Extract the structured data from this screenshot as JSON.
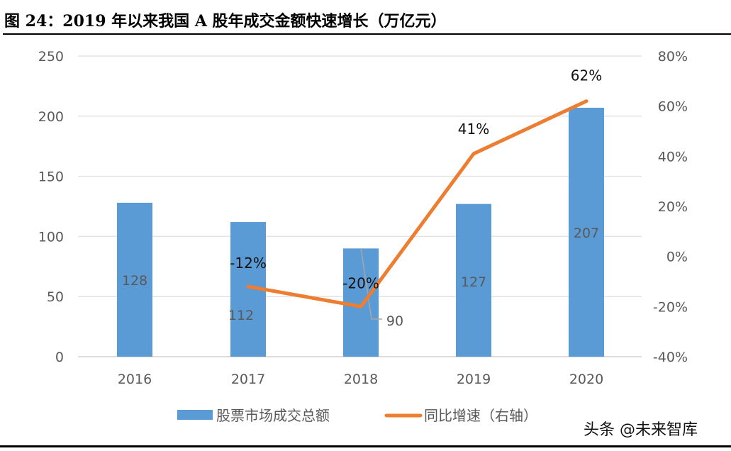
{
  "title": "图 24：2019 年以来我国 A 股年成交金额快速增长（万亿元）",
  "watermark": "头条 @未来智库",
  "chart_data": {
    "type": "bar+line",
    "categories": [
      "2016",
      "2017",
      "2018",
      "2019",
      "2020"
    ],
    "series": [
      {
        "name": "股票市场成交总额",
        "type": "bar",
        "axis": "left",
        "values": [
          128,
          112,
          90,
          127,
          207
        ],
        "labels": [
          "128",
          "112",
          "90",
          "127",
          "207"
        ],
        "color": "#5B9BD5"
      },
      {
        "name": "同比增速（右轴）",
        "type": "line",
        "axis": "right",
        "values": [
          null,
          -12,
          -20,
          41,
          62
        ],
        "labels": [
          "",
          "-12%",
          "-20%",
          "41%",
          "62%"
        ],
        "color": "#ED7D31"
      }
    ],
    "y_left": {
      "range": [
        0,
        250
      ],
      "ticks": [
        "0",
        "50",
        "100",
        "150",
        "200",
        "250"
      ]
    },
    "y_right": {
      "range": [
        -40,
        80
      ],
      "ticks": [
        "-40%",
        "-20%",
        "0%",
        "20%",
        "40%",
        "60%",
        "80%"
      ]
    },
    "grid": true,
    "legend": "bottom"
  }
}
